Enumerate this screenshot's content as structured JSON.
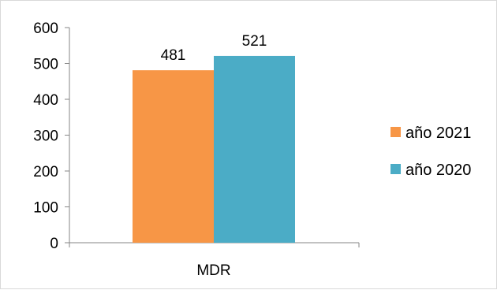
{
  "chart_data": {
    "type": "bar",
    "categories": [
      "MDR"
    ],
    "series": [
      {
        "name": "año 2021",
        "values": [
          481
        ],
        "color": "#F79646"
      },
      {
        "name": "año 2020",
        "values": [
          521
        ],
        "color": "#4BACC6"
      }
    ],
    "data_labels": [
      "481",
      "521"
    ],
    "y_ticks": [
      "0",
      "100",
      "200",
      "300",
      "400",
      "500",
      "600"
    ],
    "ylim": [
      0,
      600
    ],
    "grid": false,
    "legend_position": "right"
  }
}
